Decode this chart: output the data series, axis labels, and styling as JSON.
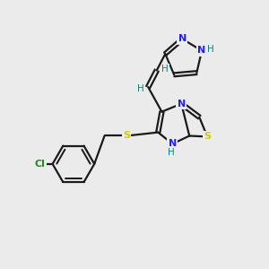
{
  "background_color": "#ebebeb",
  "bond_color": "#1a1a1a",
  "N_color": "#2020ff",
  "S_color": "#cccc00",
  "Cl_color": "#228B22",
  "H_color": "#008888",
  "lw": 1.6,
  "fs": 8.0,
  "dpi": 100,
  "figsize": [
    3.0,
    3.0
  ],
  "xlim": [
    0,
    10
  ],
  "ylim": [
    0,
    10
  ]
}
